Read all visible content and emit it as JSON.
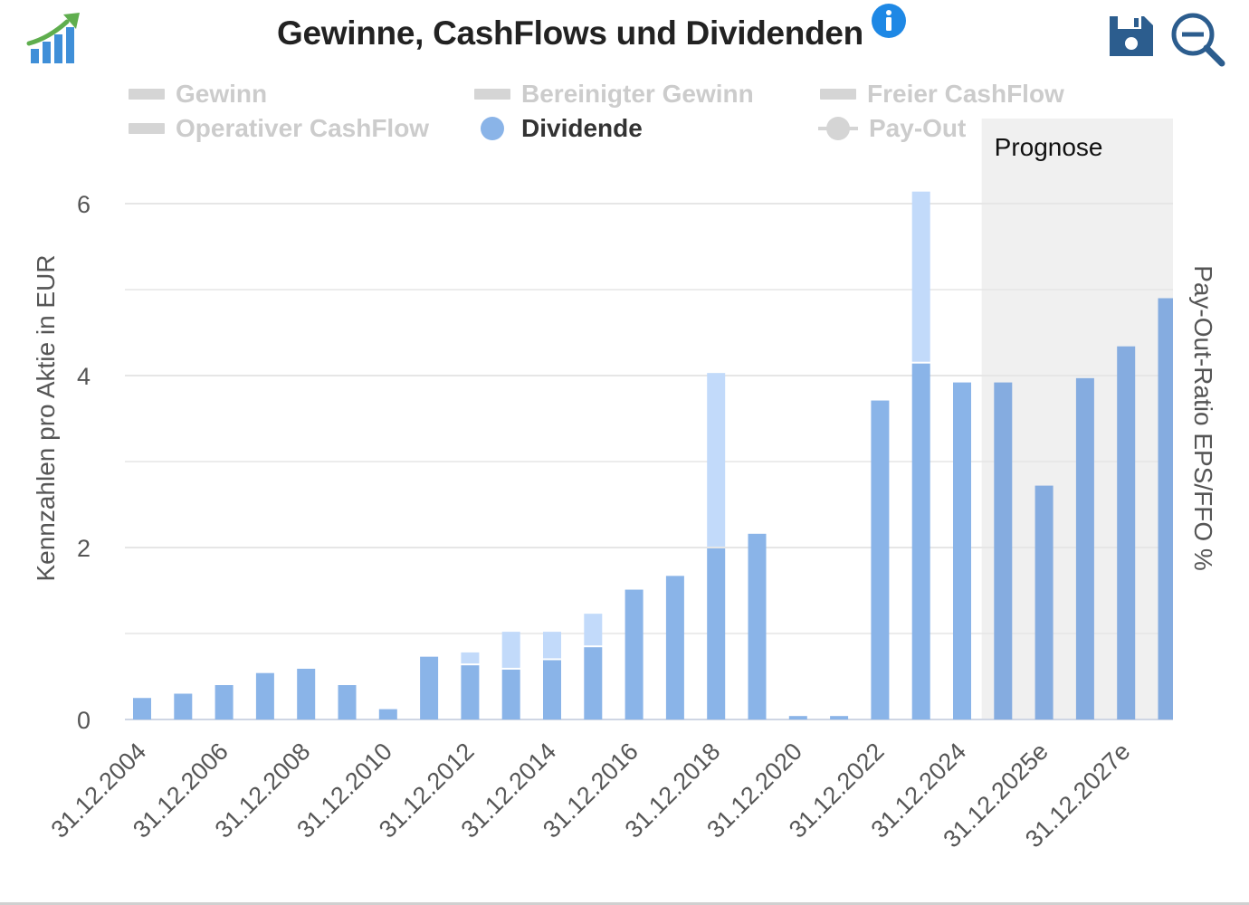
{
  "header": {
    "title": "Gewinne, CashFlows und Dividenden",
    "info_icon": "info-icon",
    "logo_icon": "bar-chart-growth-icon",
    "save_icon": "save-disk-icon",
    "zoom_icon": "zoom-out-icon"
  },
  "legend": {
    "items": [
      {
        "label": "Gewinn",
        "active": false,
        "marker": "rect"
      },
      {
        "label": "Bereinigter Gewinn",
        "active": false,
        "marker": "rect"
      },
      {
        "label": "Freier CashFlow",
        "active": false,
        "marker": "rect"
      },
      {
        "label": "Operativer CashFlow",
        "active": false,
        "marker": "rect"
      },
      {
        "label": "Dividende",
        "active": true,
        "marker": "circle"
      },
      {
        "label": "Pay-Out",
        "active": false,
        "marker": "line"
      }
    ]
  },
  "chart_data": {
    "type": "bar",
    "categories": [
      "31.12.2004",
      "31.12.2005",
      "31.12.2006",
      "31.12.2007",
      "31.12.2008",
      "31.12.2009",
      "31.12.2010",
      "31.12.2011",
      "31.12.2012",
      "31.12.2013",
      "31.12.2014",
      "31.12.2015",
      "31.12.2016",
      "31.12.2017",
      "31.12.2018",
      "31.12.2019",
      "31.12.2020",
      "31.12.2021",
      "31.12.2022",
      "31.12.2023",
      "31.12.2024",
      "31.12.2025",
      "31.12.2025e",
      "31.12.2026e",
      "31.12.2027e",
      "31.12.2028e"
    ],
    "x_tick_labels": [
      "31.12.2004",
      "31.12.2006",
      "31.12.2008",
      "31.12.2010",
      "31.12.2012",
      "31.12.2014",
      "31.12.2016",
      "31.12.2018",
      "31.12.2020",
      "31.12.2022",
      "31.12.2024",
      "31.12.2025e",
      "31.12.2027e"
    ],
    "series": [
      {
        "name": "Dividende",
        "values": [
          0.25,
          0.3,
          0.4,
          0.54,
          0.59,
          0.4,
          0.12,
          0.73,
          0.63,
          0.58,
          0.69,
          0.84,
          1.51,
          1.67,
          1.99,
          2.16,
          0.04,
          0.04,
          3.71,
          4.14,
          3.92,
          3.92,
          2.72,
          3.97,
          4.34,
          4.9
        ]
      },
      {
        "values": [
          0,
          0,
          0,
          0,
          0,
          0,
          0,
          0,
          0.15,
          0.44,
          0.33,
          0.39,
          0,
          0,
          2.04,
          0,
          0,
          0,
          0,
          2.0,
          0,
          0,
          0,
          0,
          0,
          0
        ]
      }
    ],
    "colors": {
      "dividend": "#8ab4e8",
      "dividend_forecast": "#85ace0",
      "extra": "#c2dafa",
      "gridline": "#e6e6e6",
      "forecast_band": "#f0f0f0",
      "inactive_legend": "#cccccc"
    },
    "ylabel": "Kennzahlen pro Aktie in EUR",
    "y2label": "Pay-Out-Ratio EPS/FFO %",
    "ylim": [
      0,
      6.2
    ],
    "y_ticks": [
      0,
      2,
      4,
      6
    ],
    "grid": true,
    "forecast_label": "Prognose",
    "forecast_from_category": "31.12.2025"
  }
}
